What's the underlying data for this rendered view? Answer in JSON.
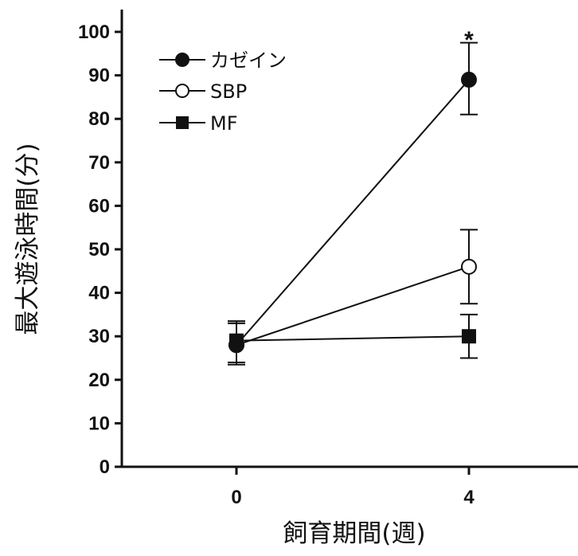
{
  "chart_data": {
    "type": "line",
    "xlabel": "飼育期間(週)",
    "ylabel": "最大遊泳時間(分)",
    "x_categories": [
      "0",
      "4"
    ],
    "ylim": [
      0,
      100
    ],
    "y_ticks": [
      "0",
      "10",
      "20",
      "30",
      "40",
      "50",
      "60",
      "70",
      "80",
      "90",
      "100"
    ],
    "grid": false,
    "legend_position": "top-left",
    "series": [
      {
        "name": "カゼイン",
        "marker": "filled-circle",
        "values": [
          28,
          89
        ],
        "error": [
          [
            24,
            33
          ],
          [
            81,
            97.5
          ]
        ]
      },
      {
        "name": "SBP",
        "marker": "open-circle",
        "values": [
          28,
          46
        ],
        "error": [
          [
            24,
            33
          ],
          [
            37.5,
            54.5
          ]
        ]
      },
      {
        "name": "MF",
        "marker": "filled-square",
        "values": [
          29,
          30
        ],
        "error": [
          [
            23.5,
            33.5
          ],
          [
            25,
            35
          ]
        ]
      }
    ],
    "annotations": [
      {
        "text": "*",
        "x": "4",
        "y": 100
      }
    ]
  }
}
